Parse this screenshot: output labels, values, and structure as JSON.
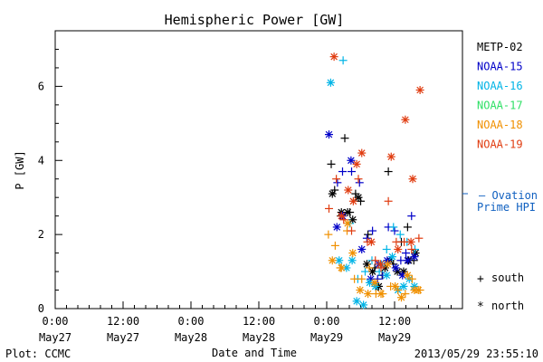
{
  "chart_data": {
    "type": "scatter",
    "title": "Hemispheric Power [GW]",
    "xlabel": "Date and Time",
    "ylabel": "P [GW]",
    "xlim": [
      0,
      72
    ],
    "ylim": [
      0,
      7.5
    ],
    "grid": false,
    "x_ticks": [
      {
        "x": 0,
        "time": "0:00",
        "date": "May27"
      },
      {
        "x": 12,
        "time": "12:00",
        "date": "May27"
      },
      {
        "x": 24,
        "time": "0:00",
        "date": "May28"
      },
      {
        "x": 36,
        "time": "12:00",
        "date": "May28"
      },
      {
        "x": 48,
        "time": "0:00",
        "date": "May29"
      },
      {
        "x": 60,
        "time": "12:00",
        "date": "May29"
      }
    ],
    "y_ticks": [
      0,
      2,
      4,
      6
    ],
    "legend_position": "right",
    "series": [
      {
        "name": "METP-02",
        "color": "#000000",
        "south": [
          [
            48.8,
            3.9
          ],
          [
            49.4,
            3.2
          ],
          [
            50.5,
            2.5
          ],
          [
            51.2,
            4.6
          ],
          [
            52.1,
            2.6
          ],
          [
            53.1,
            3.1
          ],
          [
            54.0,
            2.9
          ],
          [
            55.3,
            2.0
          ],
          [
            56.5,
            1.1
          ],
          [
            57.0,
            0.6
          ],
          [
            57.8,
            0.9
          ],
          [
            58.9,
            3.7
          ],
          [
            59.8,
            1.2
          ],
          [
            61.2,
            1.8
          ],
          [
            62.3,
            2.2
          ],
          [
            63.4,
            1.3
          ]
        ],
        "north": [
          [
            49.0,
            3.1
          ],
          [
            50.6,
            2.6
          ],
          [
            51.7,
            2.6
          ],
          [
            52.6,
            2.4
          ],
          [
            53.6,
            3.0
          ],
          [
            55.1,
            1.2
          ],
          [
            56.1,
            1.0
          ],
          [
            57.2,
            0.6
          ],
          [
            58.3,
            1.1
          ],
          [
            59.2,
            1.3
          ],
          [
            60.5,
            1.0
          ],
          [
            61.6,
            1.0
          ],
          [
            62.5,
            1.3
          ],
          [
            63.7,
            1.5
          ]
        ]
      },
      {
        "name": "NOAA-15",
        "color": "#0000c8",
        "south": [
          [
            49.9,
            3.4
          ],
          [
            50.8,
            3.7
          ],
          [
            52.4,
            3.7
          ],
          [
            53.8,
            3.4
          ],
          [
            55.1,
            1.9
          ],
          [
            56.1,
            2.1
          ],
          [
            57.0,
            0.8
          ],
          [
            57.9,
            0.9
          ],
          [
            58.9,
            2.2
          ],
          [
            60.0,
            2.1
          ],
          [
            61.1,
            1.3
          ],
          [
            62.0,
            1.5
          ],
          [
            63.0,
            2.5
          ]
        ],
        "north": [
          [
            48.4,
            4.7
          ],
          [
            49.8,
            2.2
          ],
          [
            50.8,
            2.5
          ],
          [
            52.3,
            4.0
          ],
          [
            54.2,
            1.6
          ],
          [
            55.8,
            0.8
          ],
          [
            57.2,
            1.2
          ],
          [
            58.7,
            1.3
          ],
          [
            60.2,
            1.1
          ],
          [
            61.4,
            0.9
          ],
          [
            62.3,
            1.3
          ],
          [
            63.5,
            1.4
          ]
        ]
      },
      {
        "name": "NOAA-16",
        "color": "#00b4e6",
        "south": [
          [
            50.9,
            6.7
          ],
          [
            52.1,
            2.3
          ],
          [
            53.5,
            0.8
          ],
          [
            54.8,
            1.0
          ],
          [
            56.0,
            1.3
          ],
          [
            57.3,
            1.0
          ],
          [
            58.6,
            1.6
          ],
          [
            59.8,
            2.2
          ],
          [
            61.0,
            2.0
          ],
          [
            62.2,
            1.8
          ],
          [
            63.6,
            1.6
          ]
        ],
        "north": [
          [
            48.7,
            6.1
          ],
          [
            50.2,
            1.3
          ],
          [
            51.5,
            1.1
          ],
          [
            52.5,
            1.3
          ],
          [
            53.3,
            0.2
          ],
          [
            54.5,
            0.1
          ],
          [
            55.6,
            0.7
          ],
          [
            56.6,
            0.6
          ],
          [
            57.6,
            1.2
          ],
          [
            58.6,
            0.9
          ],
          [
            59.6,
            1.4
          ],
          [
            60.6,
            0.5
          ],
          [
            61.6,
            0.6
          ],
          [
            62.6,
            0.8
          ],
          [
            63.5,
            0.6
          ]
        ]
      },
      {
        "name": "NOAA-17",
        "color": "#2fe066",
        "south": [],
        "north": []
      },
      {
        "name": "NOAA-18",
        "color": "#f09000",
        "south": [
          [
            48.3,
            2.0
          ],
          [
            49.5,
            1.7
          ],
          [
            50.4,
            1.1
          ],
          [
            51.6,
            2.1
          ],
          [
            52.9,
            0.8
          ],
          [
            54.2,
            0.8
          ],
          [
            55.5,
            1.1
          ],
          [
            56.7,
            0.4
          ],
          [
            57.9,
            0.4
          ],
          [
            59.3,
            0.6
          ],
          [
            60.6,
            0.5
          ],
          [
            61.9,
            0.4
          ],
          [
            63.1,
            0.8
          ],
          [
            64.5,
            0.5
          ]
        ],
        "north": [
          [
            49.0,
            1.3
          ],
          [
            50.6,
            1.1
          ],
          [
            51.7,
            2.3
          ],
          [
            52.6,
            1.5
          ],
          [
            53.9,
            0.5
          ],
          [
            55.3,
            0.4
          ],
          [
            56.5,
            0.7
          ],
          [
            57.6,
            0.4
          ],
          [
            58.8,
            1.2
          ],
          [
            60.1,
            0.6
          ],
          [
            61.2,
            0.3
          ],
          [
            62.3,
            0.9
          ],
          [
            63.5,
            0.5
          ],
          [
            64.2,
            0.5
          ]
        ]
      },
      {
        "name": "NOAA-19",
        "color": "#e03c10",
        "south": [
          [
            48.4,
            2.7
          ],
          [
            49.7,
            3.5
          ],
          [
            51.0,
            2.4
          ],
          [
            52.4,
            2.1
          ],
          [
            53.6,
            3.5
          ],
          [
            55.2,
            1.8
          ],
          [
            56.6,
            1.3
          ],
          [
            57.6,
            1.1
          ],
          [
            58.9,
            2.9
          ],
          [
            60.3,
            1.8
          ],
          [
            61.7,
            1.8
          ],
          [
            63.0,
            1.6
          ],
          [
            64.3,
            1.9
          ]
        ],
        "north": [
          [
            49.3,
            6.8
          ],
          [
            50.6,
            2.5
          ],
          [
            51.8,
            3.2
          ],
          [
            52.7,
            2.9
          ],
          [
            53.3,
            3.9
          ],
          [
            54.2,
            4.2
          ],
          [
            55.9,
            1.8
          ],
          [
            57.5,
            1.2
          ],
          [
            59.4,
            4.1
          ],
          [
            60.6,
            1.6
          ],
          [
            61.9,
            5.1
          ],
          [
            62.9,
            1.8
          ],
          [
            63.2,
            3.5
          ],
          [
            64.5,
            5.9
          ]
        ]
      }
    ],
    "marker_legend": [
      {
        "symbol": "+",
        "label": "south"
      },
      {
        "symbol": "*",
        "label": "north"
      }
    ],
    "side_annotation": {
      "line1": "— Ovation",
      "line2": "Prime HPI",
      "color": "#1060c0"
    }
  },
  "footer": {
    "left": "Plot: CCMC",
    "right": "2013/05/29 23:55:10"
  }
}
